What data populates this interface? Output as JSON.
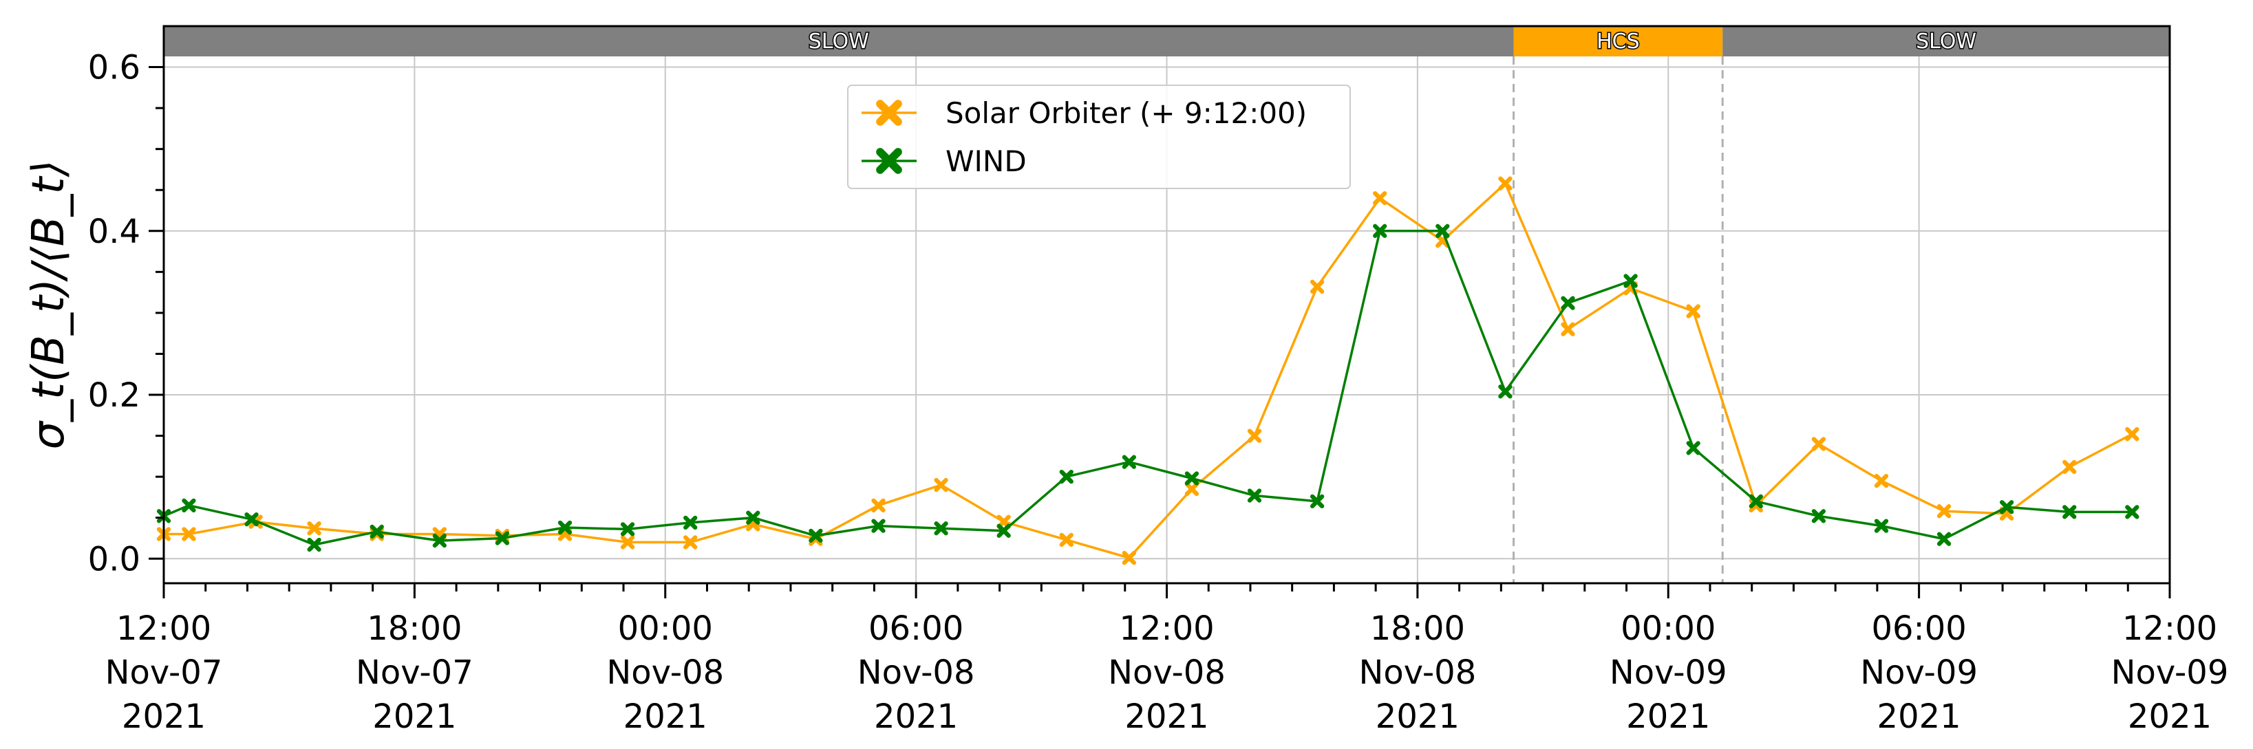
{
  "chart_data": {
    "type": "line",
    "x_unit": "hours since 2021-11-07 12:00",
    "xlim": [
      0,
      48
    ],
    "ylim": [
      -0.03,
      0.65
    ],
    "ylabel": "σ_t(B_t)/⟨B_t⟩",
    "x_ticks": [
      {
        "x": 0,
        "time": "12:00",
        "date": "Nov-07",
        "year": "2021"
      },
      {
        "x": 6,
        "time": "18:00",
        "date": "Nov-07",
        "year": "2021"
      },
      {
        "x": 12,
        "time": "00:00",
        "date": "Nov-08",
        "year": "2021"
      },
      {
        "x": 18,
        "time": "06:00",
        "date": "Nov-08",
        "year": "2021"
      },
      {
        "x": 24,
        "time": "12:00",
        "date": "Nov-08",
        "year": "2021"
      },
      {
        "x": 30,
        "time": "18:00",
        "date": "Nov-08",
        "year": "2021"
      },
      {
        "x": 36,
        "time": "00:00",
        "date": "Nov-09",
        "year": "2021"
      },
      {
        "x": 42,
        "time": "06:00",
        "date": "Nov-09",
        "year": "2021"
      },
      {
        "x": 48,
        "time": "12:00",
        "date": "Nov-09",
        "year": "2021"
      }
    ],
    "y_ticks": [
      {
        "y": 0.0,
        "label": "0.0"
      },
      {
        "y": 0.2,
        "label": "0.2"
      },
      {
        "y": 0.4,
        "label": "0.4"
      },
      {
        "y": 0.6,
        "label": "0.6"
      }
    ],
    "grid": true,
    "legend_position": "top-center",
    "bands": [
      {
        "label": "SLOW",
        "x0": 0,
        "x1": 32.3,
        "color": "#808080"
      },
      {
        "label": "HCS",
        "x0": 32.3,
        "x1": 37.3,
        "color": "#FFA500"
      },
      {
        "label": "SLOW",
        "x0": 37.3,
        "x1": 48,
        "color": "#808080"
      }
    ],
    "vlines": [
      32.3,
      37.3
    ],
    "series": [
      {
        "name": "Solar Orbiter (+ 9:12:00)",
        "color": "#FFA500",
        "x": [
          0,
          0.6,
          2.2,
          3.6,
          5.1,
          6.6,
          8.1,
          9.6,
          11.1,
          12.6,
          14.1,
          15.6,
          17.1,
          18.6,
          20.1,
          21.6,
          23.1,
          24.6,
          26.1,
          27.6,
          29.1,
          30.6,
          32.1,
          33.6,
          35.1,
          36.6,
          38.1,
          39.6,
          41.1,
          42.6,
          44.1,
          45.6,
          47.1
        ],
        "y": [
          0.03,
          0.03,
          0.045,
          0.037,
          0.03,
          0.03,
          0.028,
          0.03,
          0.02,
          0.02,
          0.042,
          0.024,
          0.065,
          0.09,
          0.045,
          0.023,
          0.001,
          0.085,
          0.15,
          0.332,
          0.44,
          0.388,
          0.458,
          0.28,
          0.33,
          0.302,
          0.065,
          0.14,
          0.095,
          0.058,
          0.055,
          0.112,
          0.152
        ]
      },
      {
        "name": "WIND",
        "color": "#008000",
        "x": [
          0,
          0.6,
          2.1,
          3.6,
          5.1,
          6.6,
          8.1,
          9.6,
          11.1,
          12.6,
          14.1,
          15.6,
          17.1,
          18.6,
          20.1,
          21.6,
          23.1,
          24.6,
          26.1,
          27.6,
          29.1,
          30.6,
          32.1,
          33.6,
          35.1,
          36.6,
          38.1,
          39.6,
          41.1,
          42.6,
          44.1,
          45.6,
          47.1
        ],
        "y": [
          0.052,
          0.065,
          0.048,
          0.017,
          0.033,
          0.022,
          0.025,
          0.038,
          0.036,
          0.044,
          0.05,
          0.028,
          0.04,
          0.037,
          0.034,
          0.1,
          0.118,
          0.098,
          0.077,
          0.07,
          0.4,
          0.4,
          0.204,
          0.312,
          0.339,
          0.135,
          0.07,
          0.052,
          0.04,
          0.024,
          0.063,
          0.057,
          0.057
        ]
      }
    ]
  }
}
